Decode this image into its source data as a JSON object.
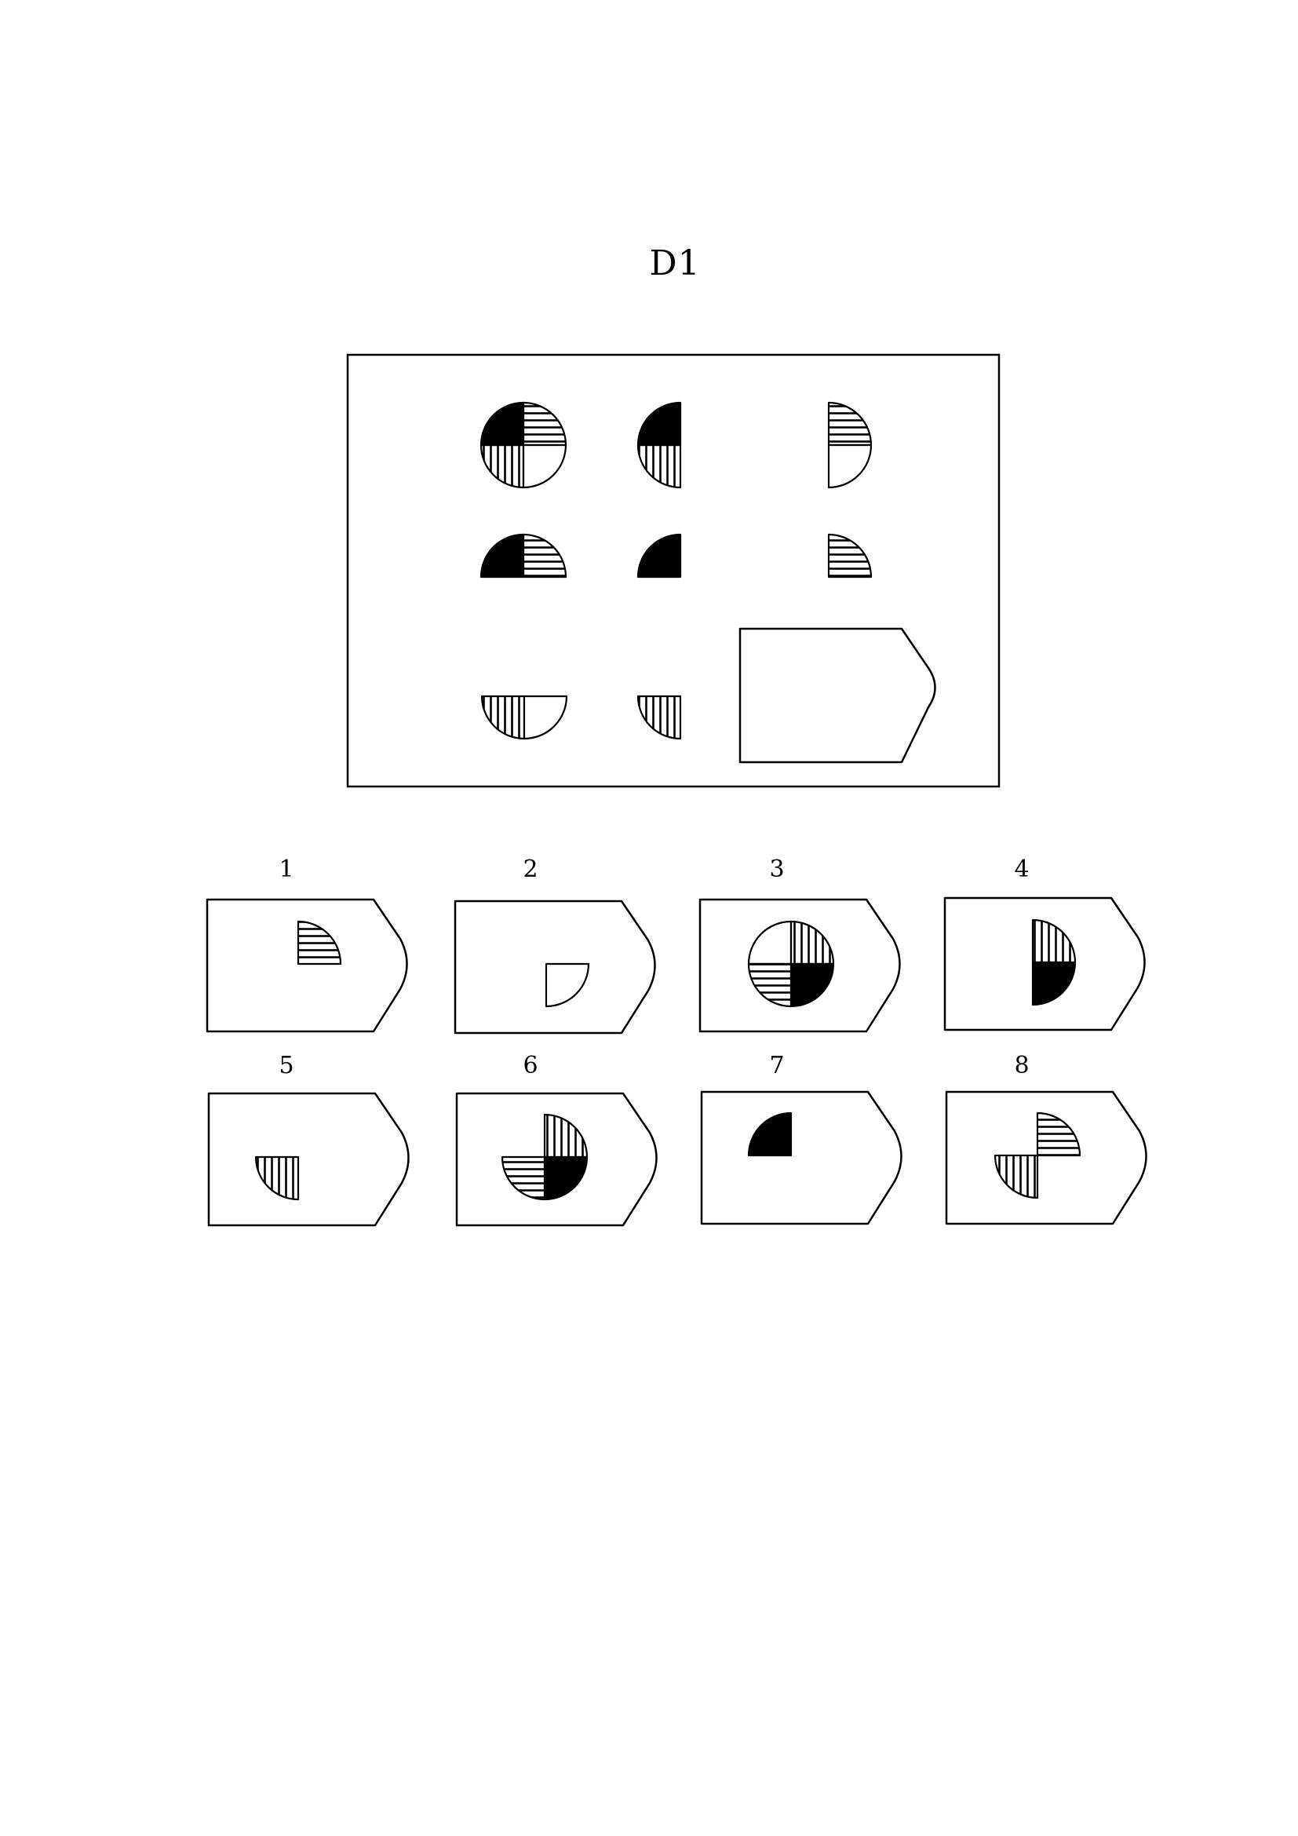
{
  "title": "D1",
  "options": [
    {
      "label": "1",
      "content": "quarter-horizontal-top-right"
    },
    {
      "label": "2",
      "content": "quarter-empty-bottom-right"
    },
    {
      "label": "3",
      "content": "full-circle-rotated"
    },
    {
      "label": "4",
      "content": "half-vertical-and-black-right"
    },
    {
      "label": "5",
      "content": "quarter-vertical-bottom-left"
    },
    {
      "label": "6",
      "content": "three-quarter-circle"
    },
    {
      "label": "7",
      "content": "quarter-black-top-left"
    },
    {
      "label": "8",
      "content": "two-quarters-diagonal"
    }
  ],
  "colors": {
    "ink": "#000000",
    "paper": "#ffffff"
  }
}
